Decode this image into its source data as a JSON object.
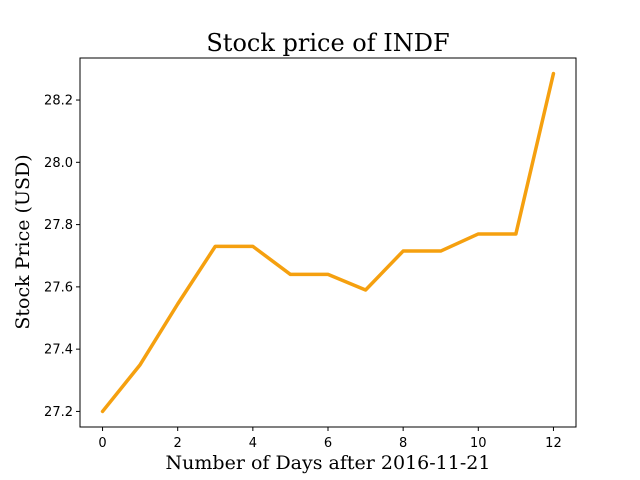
{
  "chart_data": {
    "type": "line",
    "title": "Stock price of INDF",
    "xlabel": "Number of Days after 2016-11-21",
    "ylabel": "Stock Price (USD)",
    "x": [
      0,
      1,
      2,
      3,
      4,
      5,
      6,
      7,
      8,
      9,
      10,
      11,
      12
    ],
    "series": [
      {
        "values": [
          27.2,
          27.35,
          27.545,
          27.73,
          27.73,
          27.64,
          27.64,
          27.59,
          27.715,
          27.715,
          27.77,
          27.77,
          28.285
        ],
        "color": "#f5a00f"
      }
    ],
    "xlim": [
      -0.6,
      12.6
    ],
    "ylim": [
      27.15,
      28.335
    ],
    "xticks": [
      0,
      2,
      4,
      6,
      8,
      10,
      12
    ],
    "yticks": [
      27.2,
      27.4,
      27.6,
      27.8,
      28.0,
      28.2
    ],
    "xtick_labels": [
      "0",
      "2",
      "4",
      "6",
      "8",
      "10",
      "12"
    ],
    "ytick_labels": [
      "27.2",
      "27.4",
      "27.6",
      "27.8",
      "28.0",
      "28.2"
    ],
    "grid": false
  }
}
